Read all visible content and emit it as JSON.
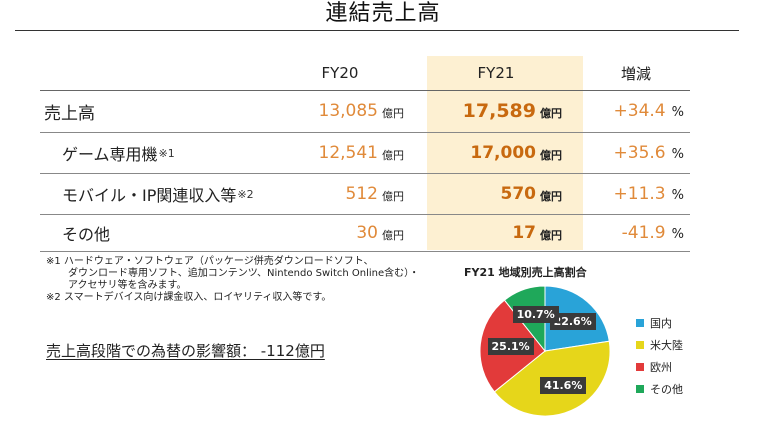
{
  "title": "連結売上高",
  "table": {
    "headers": [
      "FY20",
      "FY21",
      "増減"
    ],
    "rows": [
      {
        "label": "売上高",
        "mark": "",
        "fy20": "13,085",
        "fy21": "17,589",
        "change": "+34.4"
      },
      {
        "label": "ゲーム専用機",
        "mark": "※1",
        "fy20": "12,541",
        "fy21": "17,000",
        "change": "+35.6"
      },
      {
        "label": "モバイル・IP関連収入等",
        "mark": "※2",
        "fy20": "512",
        "fy21": "570",
        "change": "+11.3"
      },
      {
        "label": "その他",
        "mark": "",
        "fy20": "30",
        "fy21": "17",
        "change": "-41.9"
      }
    ],
    "unit": "億円",
    "pct_unit": "%"
  },
  "notes": [
    "※1 ハードウェア・ソフトウェア（パッケージ併売ダウンロードソフト、",
    "ダウンロード専用ソフト、追加コンテンツ、Nintendo Switch Online含む）・",
    "アクセサリ等を含みます。",
    "※2 スマートデバイス向け課金収入、ロイヤリティ収入等です。"
  ],
  "fx_impact": "売上高段階での為替の影響額： -112億円",
  "chart_data": {
    "type": "pie",
    "title": "FY21 地域別売上高割合",
    "slices": [
      {
        "name": "国内",
        "value": 22.6,
        "label": "22.6%",
        "color": "#29a3d8"
      },
      {
        "name": "米大陸",
        "value": 41.6,
        "label": "41.6%",
        "color": "#e6d61a"
      },
      {
        "name": "欧州",
        "value": 25.1,
        "label": "25.1%",
        "color": "#e23a3a"
      },
      {
        "name": "その他",
        "value": 10.7,
        "label": "10.7%",
        "color": "#1fa85a"
      }
    ],
    "legend_position": "right"
  }
}
